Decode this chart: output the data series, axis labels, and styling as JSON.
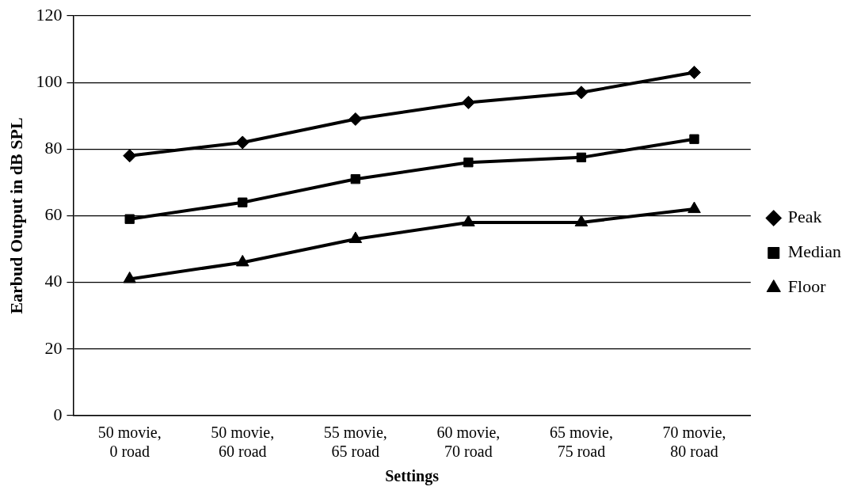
{
  "chart_data": {
    "type": "line",
    "xlabel": "Settings",
    "ylabel": "Earbud Output in dB SPL",
    "categories": [
      "50 movie, 0 road",
      "50 movie, 60 road",
      "55 movie, 65 road",
      "60 movie, 70 road",
      "65 movie, 75 road",
      "70 movie, 80 road"
    ],
    "series": [
      {
        "name": "Peak",
        "color": "#000000",
        "marker": "diamond",
        "values": [
          78,
          82,
          89,
          94,
          97,
          103
        ]
      },
      {
        "name": "Median",
        "color": "#000000",
        "marker": "square",
        "values": [
          59,
          64,
          71,
          76,
          77.5,
          83
        ]
      },
      {
        "name": "Floor",
        "color": "#000000",
        "marker": "triangle",
        "values": [
          41,
          46,
          53,
          58,
          58,
          62
        ]
      }
    ],
    "ylim": [
      0,
      120
    ],
    "yticks": [
      0,
      20,
      40,
      60,
      80,
      100,
      120
    ],
    "grid": "y",
    "legend": "right",
    "line_style": "solid"
  }
}
